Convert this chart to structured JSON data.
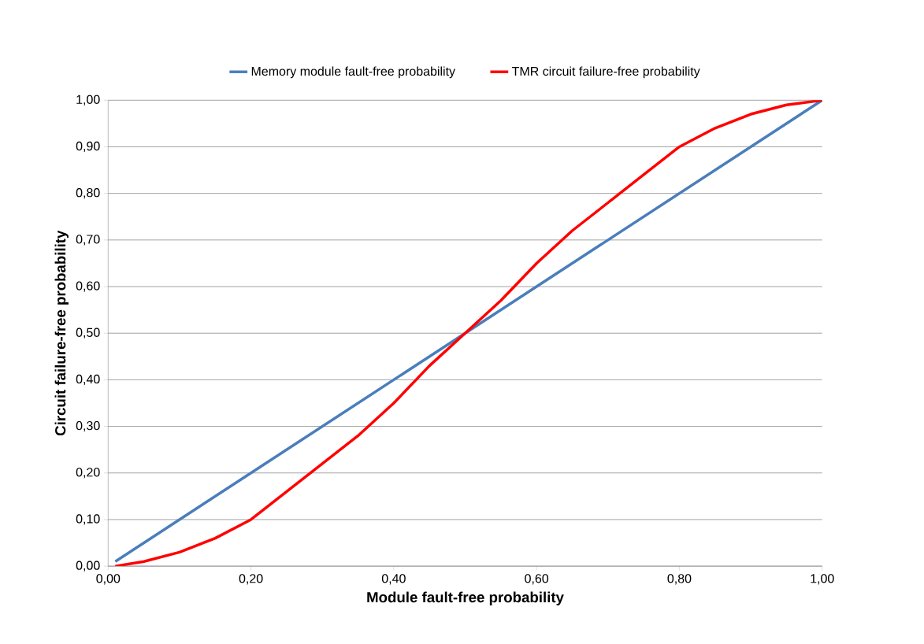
{
  "chart_data": {
    "type": "line",
    "xlabel": "Module fault-free probability",
    "ylabel": "Circuit failure-free probability",
    "xlim": [
      0,
      1
    ],
    "ylim": [
      0,
      1
    ],
    "xticks": [
      {
        "value": 0,
        "label": "0,00"
      },
      {
        "value": 0.2,
        "label": "0,20"
      },
      {
        "value": 0.4,
        "label": "0,40"
      },
      {
        "value": 0.6,
        "label": "0,60"
      },
      {
        "value": 0.8,
        "label": "0,80"
      },
      {
        "value": 1,
        "label": "1,00"
      }
    ],
    "yticks": [
      {
        "value": 0,
        "label": "0,00"
      },
      {
        "value": 0.1,
        "label": "0,10"
      },
      {
        "value": 0.2,
        "label": "0,20"
      },
      {
        "value": 0.3,
        "label": "0,30"
      },
      {
        "value": 0.4,
        "label": "0,40"
      },
      {
        "value": 0.5,
        "label": "0,50"
      },
      {
        "value": 0.6,
        "label": "0,60"
      },
      {
        "value": 0.7,
        "label": "0,70"
      },
      {
        "value": 0.8,
        "label": "0,80"
      },
      {
        "value": 0.9,
        "label": "0,90"
      },
      {
        "value": 1,
        "label": "1,00"
      }
    ],
    "grid": "y",
    "legend": "top",
    "marker": "none",
    "line_style": "solid",
    "series": [
      {
        "name": "Memory module fault-free probability",
        "color": "#4a7ebb",
        "x": [
          0.01,
          0.2,
          0.4,
          0.5,
          0.6,
          0.8,
          1.0
        ],
        "values": [
          0.01,
          0.2,
          0.4,
          0.5,
          0.6,
          0.8,
          1.0
        ]
      },
      {
        "name": "TMR circuit failure-free probability",
        "color": "#ff0000",
        "x": [
          0.01,
          0.05,
          0.1,
          0.15,
          0.2,
          0.25,
          0.3,
          0.35,
          0.4,
          0.45,
          0.5,
          0.55,
          0.6,
          0.65,
          0.7,
          0.75,
          0.8,
          0.85,
          0.9,
          0.95,
          1.0
        ],
        "values": [
          0.0,
          0.01,
          0.03,
          0.06,
          0.1,
          0.16,
          0.22,
          0.28,
          0.35,
          0.43,
          0.5,
          0.57,
          0.65,
          0.72,
          0.78,
          0.84,
          0.9,
          0.94,
          0.97,
          0.99,
          1.0
        ]
      }
    ]
  }
}
